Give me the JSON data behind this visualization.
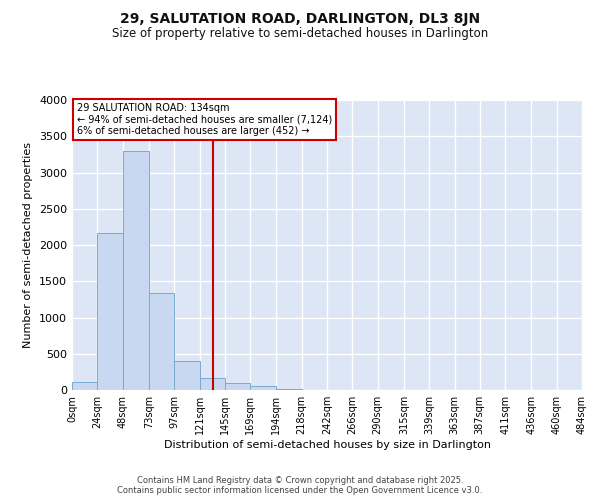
{
  "title": "29, SALUTATION ROAD, DARLINGTON, DL3 8JN",
  "subtitle": "Size of property relative to semi-detached houses in Darlington",
  "xlabel": "Distribution of semi-detached houses by size in Darlington",
  "ylabel": "Number of semi-detached properties",
  "property_label": "29 SALUTATION ROAD: 134sqm",
  "annotation_line1": "← 94% of semi-detached houses are smaller (7,124)",
  "annotation_line2": "6% of semi-detached houses are larger (452) →",
  "bin_labels": [
    "0sqm",
    "24sqm",
    "48sqm",
    "73sqm",
    "97sqm",
    "121sqm",
    "145sqm",
    "169sqm",
    "194sqm",
    "218sqm",
    "242sqm",
    "266sqm",
    "290sqm",
    "315sqm",
    "339sqm",
    "363sqm",
    "387sqm",
    "411sqm",
    "436sqm",
    "460sqm",
    "484sqm"
  ],
  "bin_edges": [
    0,
    24,
    48,
    73,
    97,
    121,
    145,
    169,
    194,
    218,
    242,
    266,
    290,
    315,
    339,
    363,
    387,
    411,
    436,
    460,
    484
  ],
  "bar_values": [
    110,
    2170,
    3300,
    1340,
    395,
    165,
    95,
    55,
    20,
    0,
    0,
    0,
    0,
    0,
    0,
    0,
    0,
    0,
    0,
    0
  ],
  "bar_color": "#c8d8f0",
  "bar_edge_color": "#7aaad0",
  "vline_color": "#cc0000",
  "vline_x": 134,
  "annotation_box_color": "#cc0000",
  "ylim": [
    0,
    4000
  ],
  "yticks": [
    0,
    500,
    1000,
    1500,
    2000,
    2500,
    3000,
    3500,
    4000
  ],
  "bg_color": "#dce6f5",
  "grid_color": "#ffffff",
  "fig_bg": "#ffffff",
  "footer_line1": "Contains HM Land Registry data © Crown copyright and database right 2025.",
  "footer_line2": "Contains public sector information licensed under the Open Government Licence v3.0."
}
